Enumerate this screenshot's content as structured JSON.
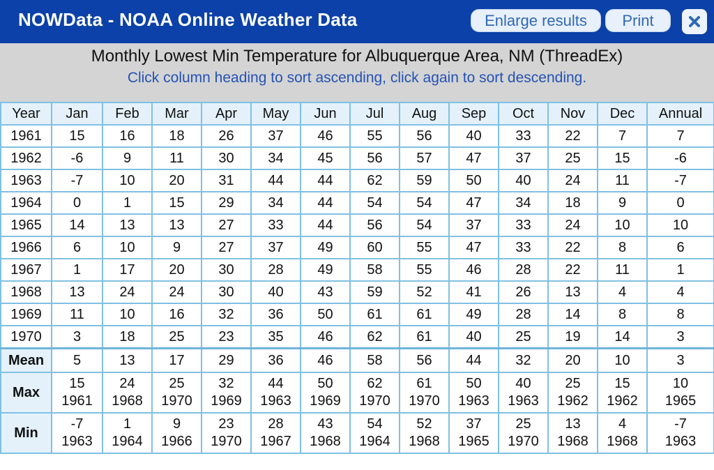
{
  "window": {
    "title": "NOWData - NOAA Online Weather Data",
    "enlarge_label": "Enlarge results",
    "print_label": "Print",
    "close_icon": "close-icon",
    "header_color": "#0b41a8"
  },
  "report": {
    "title": "Monthly Lowest Min Temperature for Albuquerque Area, NM (ThreadEx)",
    "hint": "Click column heading to sort ascending, click again to sort descending."
  },
  "table": {
    "headers": [
      "Year",
      "Jan",
      "Feb",
      "Mar",
      "Apr",
      "May",
      "Jun",
      "Jul",
      "Aug",
      "Sep",
      "Oct",
      "Nov",
      "Dec",
      "Annual"
    ],
    "rows": [
      [
        "1961",
        "15",
        "16",
        "18",
        "26",
        "37",
        "46",
        "55",
        "56",
        "40",
        "33",
        "22",
        "7",
        "7"
      ],
      [
        "1962",
        "-6",
        "9",
        "11",
        "30",
        "34",
        "45",
        "56",
        "57",
        "47",
        "37",
        "25",
        "15",
        "-6"
      ],
      [
        "1963",
        "-7",
        "10",
        "20",
        "31",
        "44",
        "44",
        "62",
        "59",
        "50",
        "40",
        "24",
        "11",
        "-7"
      ],
      [
        "1964",
        "0",
        "1",
        "15",
        "29",
        "34",
        "44",
        "54",
        "54",
        "47",
        "34",
        "18",
        "9",
        "0"
      ],
      [
        "1965",
        "14",
        "13",
        "13",
        "27",
        "33",
        "44",
        "56",
        "54",
        "37",
        "33",
        "24",
        "10",
        "10"
      ],
      [
        "1966",
        "6",
        "10",
        "9",
        "27",
        "37",
        "49",
        "60",
        "55",
        "47",
        "33",
        "22",
        "8",
        "6"
      ],
      [
        "1967",
        "1",
        "17",
        "20",
        "30",
        "28",
        "49",
        "58",
        "55",
        "46",
        "28",
        "22",
        "11",
        "1"
      ],
      [
        "1968",
        "13",
        "24",
        "24",
        "30",
        "40",
        "43",
        "59",
        "52",
        "41",
        "26",
        "13",
        "4",
        "4"
      ],
      [
        "1969",
        "11",
        "10",
        "16",
        "32",
        "36",
        "50",
        "61",
        "61",
        "49",
        "28",
        "14",
        "8",
        "8"
      ],
      [
        "1970",
        "3",
        "18",
        "25",
        "23",
        "35",
        "46",
        "62",
        "61",
        "40",
        "25",
        "19",
        "14",
        "3"
      ]
    ],
    "summary": {
      "mean": {
        "label": "Mean",
        "values": [
          "5",
          "13",
          "17",
          "29",
          "36",
          "46",
          "58",
          "56",
          "44",
          "32",
          "20",
          "10",
          "3"
        ]
      },
      "max": {
        "label": "Max",
        "values": [
          "15",
          "24",
          "25",
          "32",
          "44",
          "50",
          "62",
          "61",
          "50",
          "40",
          "25",
          "15",
          "10"
        ],
        "years": [
          "1961",
          "1968",
          "1970",
          "1969",
          "1963",
          "1969",
          "1970",
          "1970",
          "1963",
          "1963",
          "1962",
          "1962",
          "1965"
        ]
      },
      "min": {
        "label": "Min",
        "values": [
          "-7",
          "1",
          "9",
          "23",
          "28",
          "43",
          "54",
          "52",
          "37",
          "25",
          "13",
          "4",
          "-7"
        ],
        "years": [
          "1963",
          "1964",
          "1966",
          "1970",
          "1967",
          "1968",
          "1964",
          "1968",
          "1965",
          "1970",
          "1968",
          "1968",
          "1963"
        ]
      }
    }
  }
}
